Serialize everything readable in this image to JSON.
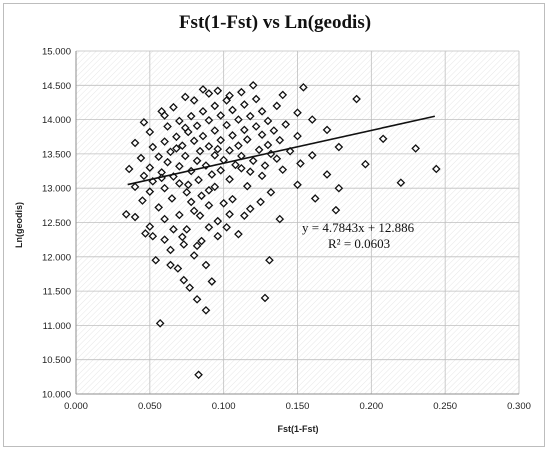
{
  "chart_data": {
    "type": "scatter",
    "title": "Fst(1-Fst) vs Ln(geodis)",
    "xlabel": "Fst(1-Fst)",
    "ylabel": "Ln(geodis)",
    "xlim": [
      0.0,
      0.3
    ],
    "ylim": [
      10.0,
      15.0
    ],
    "x_ticks": [
      "0.000",
      "0.050",
      "0.100",
      "0.150",
      "0.200",
      "0.250",
      "0.300"
    ],
    "y_ticks": [
      "10.000",
      "10.500",
      "11.000",
      "11.500",
      "12.000",
      "12.500",
      "13.000",
      "13.500",
      "14.000",
      "14.500",
      "15.000"
    ],
    "grid": true,
    "marker": "diamond-open",
    "trendline": {
      "slope": 4.7843,
      "intercept": 12.886,
      "x_range": [
        0.035,
        0.243
      ]
    },
    "equation_label": "y = 4.7843x + 12.886",
    "r2_label": "R² = 0.0603",
    "points": [
      [
        0.083,
        10.28
      ],
      [
        0.057,
        11.03
      ],
      [
        0.088,
        11.22
      ],
      [
        0.082,
        11.38
      ],
      [
        0.128,
        11.4
      ],
      [
        0.077,
        11.55
      ],
      [
        0.073,
        11.66
      ],
      [
        0.092,
        11.64
      ],
      [
        0.069,
        11.83
      ],
      [
        0.064,
        11.88
      ],
      [
        0.054,
        11.95
      ],
      [
        0.131,
        11.95
      ],
      [
        0.088,
        11.88
      ],
      [
        0.08,
        12.02
      ],
      [
        0.064,
        12.1
      ],
      [
        0.073,
        12.18
      ],
      [
        0.082,
        12.16
      ],
      [
        0.085,
        12.23
      ],
      [
        0.06,
        12.25
      ],
      [
        0.072,
        12.29
      ],
      [
        0.047,
        12.34
      ],
      [
        0.052,
        12.3
      ],
      [
        0.096,
        12.3
      ],
      [
        0.11,
        12.33
      ],
      [
        0.075,
        12.4
      ],
      [
        0.05,
        12.44
      ],
      [
        0.09,
        12.43
      ],
      [
        0.102,
        12.43
      ],
      [
        0.06,
        12.55
      ],
      [
        0.04,
        12.58
      ],
      [
        0.07,
        12.61
      ],
      [
        0.138,
        12.55
      ],
      [
        0.114,
        12.6
      ],
      [
        0.176,
        12.68
      ],
      [
        0.034,
        12.62
      ],
      [
        0.08,
        12.67
      ],
      [
        0.118,
        12.7
      ],
      [
        0.056,
        12.72
      ],
      [
        0.09,
        12.75
      ],
      [
        0.1,
        12.78
      ],
      [
        0.125,
        12.8
      ],
      [
        0.045,
        12.82
      ],
      [
        0.065,
        12.85
      ],
      [
        0.106,
        12.84
      ],
      [
        0.162,
        12.85
      ],
      [
        0.085,
        12.89
      ],
      [
        0.05,
        12.95
      ],
      [
        0.075,
        12.94
      ],
      [
        0.132,
        12.94
      ],
      [
        0.06,
        13.0
      ],
      [
        0.094,
        13.02
      ],
      [
        0.04,
        13.02
      ],
      [
        0.116,
        13.03
      ],
      [
        0.178,
        13.0
      ],
      [
        0.22,
        13.08
      ],
      [
        0.07,
        13.07
      ],
      [
        0.15,
        13.05
      ],
      [
        0.052,
        13.1
      ],
      [
        0.083,
        13.12
      ],
      [
        0.104,
        13.13
      ],
      [
        0.244,
        13.28
      ],
      [
        0.046,
        13.18
      ],
      [
        0.066,
        13.17
      ],
      [
        0.092,
        13.2
      ],
      [
        0.126,
        13.18
      ],
      [
        0.17,
        13.2
      ],
      [
        0.058,
        13.23
      ],
      [
        0.078,
        13.25
      ],
      [
        0.098,
        13.26
      ],
      [
        0.118,
        13.24
      ],
      [
        0.14,
        13.27
      ],
      [
        0.036,
        13.28
      ],
      [
        0.05,
        13.3
      ],
      [
        0.07,
        13.32
      ],
      [
        0.088,
        13.33
      ],
      [
        0.108,
        13.34
      ],
      [
        0.128,
        13.33
      ],
      [
        0.152,
        13.36
      ],
      [
        0.196,
        13.35
      ],
      [
        0.062,
        13.38
      ],
      [
        0.082,
        13.4
      ],
      [
        0.1,
        13.41
      ],
      [
        0.12,
        13.4
      ],
      [
        0.136,
        13.43
      ],
      [
        0.044,
        13.44
      ],
      [
        0.056,
        13.46
      ],
      [
        0.074,
        13.47
      ],
      [
        0.094,
        13.48
      ],
      [
        0.112,
        13.47
      ],
      [
        0.132,
        13.5
      ],
      [
        0.16,
        13.48
      ],
      [
        0.064,
        13.53
      ],
      [
        0.084,
        13.54
      ],
      [
        0.104,
        13.55
      ],
      [
        0.124,
        13.56
      ],
      [
        0.145,
        13.54
      ],
      [
        0.052,
        13.6
      ],
      [
        0.072,
        13.62
      ],
      [
        0.09,
        13.61
      ],
      [
        0.11,
        13.62
      ],
      [
        0.13,
        13.63
      ],
      [
        0.178,
        13.6
      ],
      [
        0.23,
        13.58
      ],
      [
        0.04,
        13.66
      ],
      [
        0.06,
        13.68
      ],
      [
        0.08,
        13.69
      ],
      [
        0.098,
        13.7
      ],
      [
        0.116,
        13.71
      ],
      [
        0.138,
        13.7
      ],
      [
        0.208,
        13.72
      ],
      [
        0.068,
        13.75
      ],
      [
        0.086,
        13.76
      ],
      [
        0.106,
        13.77
      ],
      [
        0.126,
        13.78
      ],
      [
        0.15,
        13.76
      ],
      [
        0.05,
        13.82
      ],
      [
        0.076,
        13.82
      ],
      [
        0.094,
        13.84
      ],
      [
        0.114,
        13.85
      ],
      [
        0.134,
        13.84
      ],
      [
        0.17,
        13.85
      ],
      [
        0.062,
        13.9
      ],
      [
        0.082,
        13.91
      ],
      [
        0.102,
        13.92
      ],
      [
        0.122,
        13.9
      ],
      [
        0.142,
        13.93
      ],
      [
        0.046,
        13.96
      ],
      [
        0.07,
        13.98
      ],
      [
        0.09,
        13.99
      ],
      [
        0.11,
        14.0
      ],
      [
        0.13,
        13.98
      ],
      [
        0.16,
        14.0
      ],
      [
        0.078,
        14.05
      ],
      [
        0.098,
        14.06
      ],
      [
        0.118,
        14.05
      ],
      [
        0.058,
        14.12
      ],
      [
        0.086,
        14.12
      ],
      [
        0.106,
        14.14
      ],
      [
        0.126,
        14.12
      ],
      [
        0.15,
        14.1
      ],
      [
        0.066,
        14.18
      ],
      [
        0.094,
        14.2
      ],
      [
        0.114,
        14.22
      ],
      [
        0.136,
        14.2
      ],
      [
        0.08,
        14.28
      ],
      [
        0.102,
        14.28
      ],
      [
        0.122,
        14.3
      ],
      [
        0.19,
        14.3
      ],
      [
        0.09,
        14.38
      ],
      [
        0.112,
        14.4
      ],
      [
        0.154,
        14.47
      ],
      [
        0.096,
        14.42
      ],
      [
        0.12,
        14.5
      ],
      [
        0.086,
        14.44
      ],
      [
        0.074,
        14.33
      ],
      [
        0.104,
        14.35
      ],
      [
        0.14,
        14.36
      ],
      [
        0.06,
        14.06
      ],
      [
        0.074,
        13.88
      ],
      [
        0.068,
        13.58
      ],
      [
        0.096,
        13.57
      ],
      [
        0.112,
        13.29
      ],
      [
        0.058,
        13.15
      ],
      [
        0.076,
        13.05
      ],
      [
        0.09,
        12.97
      ],
      [
        0.084,
        12.6
      ],
      [
        0.096,
        12.52
      ],
      [
        0.066,
        12.4
      ],
      [
        0.104,
        12.62
      ],
      [
        0.078,
        12.8
      ]
    ]
  }
}
